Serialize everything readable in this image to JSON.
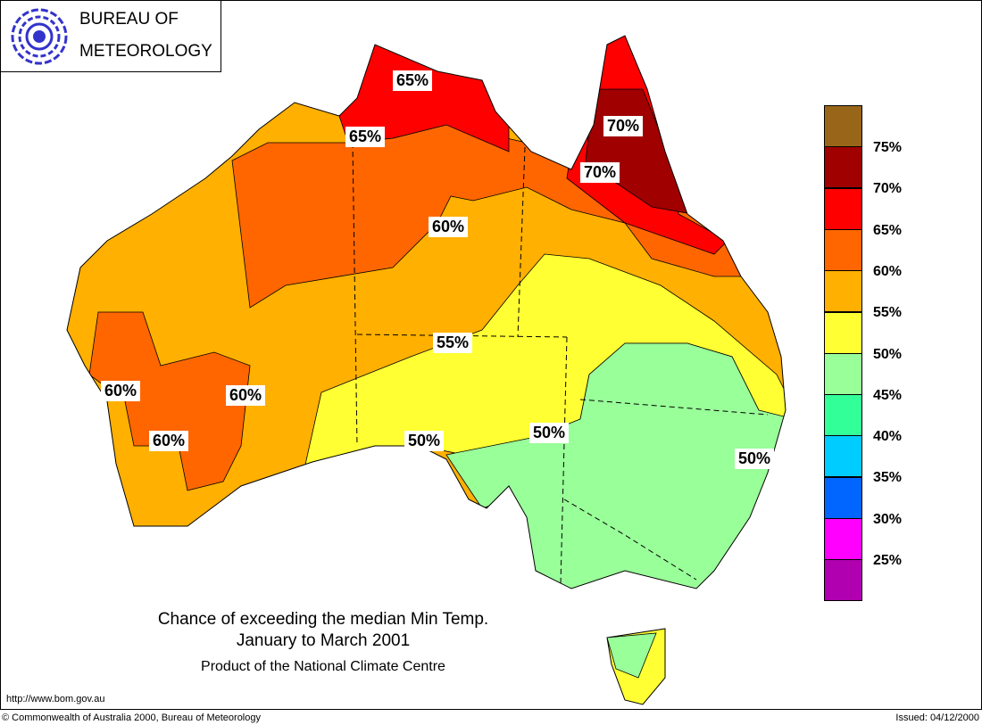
{
  "logo": {
    "line1": "BUREAU OF",
    "line2": "METEOROLOGY"
  },
  "map_labels": [
    "65%",
    "65%",
    "70%",
    "70%",
    "60%",
    "55%",
    "60%",
    "60%",
    "60%",
    "50%",
    "50%",
    "50%"
  ],
  "title": {
    "line1": "Chance of exceeding the median Min Temp.",
    "line2": "January to March 2001",
    "line3": "Product of the National Climate Centre"
  },
  "legend": {
    "colors": [
      "#996619",
      "#a00000",
      "#ff0000",
      "#ff6600",
      "#ffb000",
      "#ffff33",
      "#99ff99",
      "#33ff99",
      "#00ccff",
      "#0066ff",
      "#ff00ff",
      "#b000b0"
    ],
    "labels": [
      "75%",
      "70%",
      "65%",
      "60%",
      "55%",
      "50%",
      "45%",
      "40%",
      "35%",
      "30%",
      "25%"
    ]
  },
  "footer": {
    "url": "http://www.bom.gov.au",
    "copyright": "© Commonwealth of Australia 2000, Bureau of Meteorology",
    "issued": "Issued: 04/12/2000"
  }
}
